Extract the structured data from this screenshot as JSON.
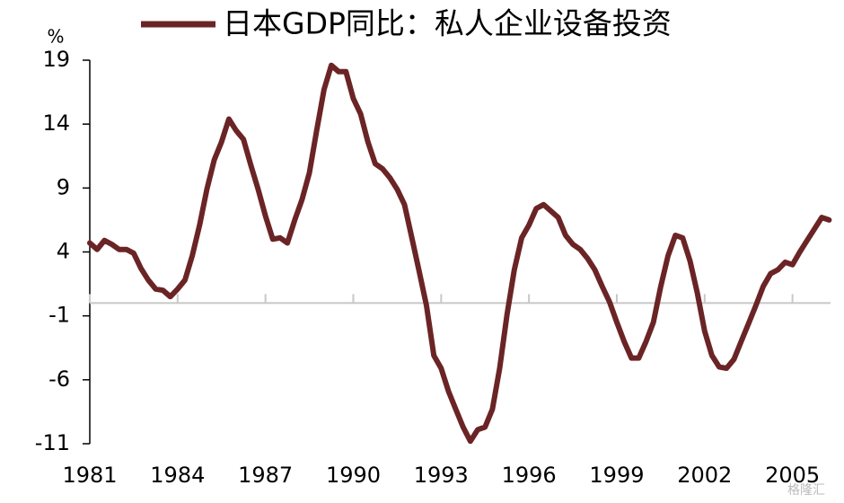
{
  "chart_data": {
    "type": "line",
    "y_label": "%",
    "watermark": "格隆汇",
    "x": [
      1981,
      1981.25,
      1981.5,
      1981.75,
      1982,
      1982.25,
      1982.5,
      1982.75,
      1983,
      1983.25,
      1983.5,
      1983.75,
      1984,
      1984.25,
      1984.5,
      1984.75,
      1985,
      1985.25,
      1985.5,
      1985.75,
      1986,
      1986.25,
      1986.5,
      1986.75,
      1987,
      1987.25,
      1987.5,
      1987.75,
      1988,
      1988.25,
      1988.5,
      1988.75,
      1989,
      1989.25,
      1989.5,
      1989.75,
      1990,
      1990.25,
      1990.5,
      1990.75,
      1991,
      1991.25,
      1991.5,
      1991.75,
      1992,
      1992.25,
      1992.5,
      1992.75,
      1993,
      1993.25,
      1993.5,
      1993.75,
      1994,
      1994.25,
      1994.5,
      1994.75,
      1995,
      1995.25,
      1995.5,
      1995.75,
      1996,
      1996.25,
      1996.5,
      1996.75,
      1997,
      1997.25,
      1997.5,
      1997.75,
      1998,
      1998.25,
      1998.5,
      1998.75,
      1999,
      1999.25,
      1999.5,
      1999.75,
      2000,
      2000.25,
      2000.5,
      2000.75,
      2001,
      2001.25,
      2001.5,
      2001.75,
      2002,
      2002.25,
      2002.5,
      2002.75,
      2003,
      2003.25,
      2003.5,
      2003.75,
      2004,
      2004.25,
      2004.5,
      2004.75,
      2005,
      2005.25,
      2005.5,
      2005.75,
      2006,
      2006.25
    ],
    "series": [
      {
        "name": "日本GDP同比：私人企业设备投资",
        "color": "#6b2425",
        "values": [
          4.7,
          4.2,
          4.9,
          4.6,
          4.2,
          4.2,
          3.9,
          2.7,
          1.8,
          1.1,
          1.0,
          0.5,
          1.1,
          1.8,
          3.7,
          6.1,
          8.9,
          11.2,
          12.6,
          14.4,
          13.5,
          12.8,
          10.8,
          8.9,
          6.8,
          5.0,
          5.1,
          4.7,
          6.5,
          8.1,
          10.2,
          13.5,
          16.7,
          18.6,
          18.1,
          18.1,
          16.0,
          14.8,
          12.6,
          10.9,
          10.5,
          9.8,
          8.9,
          7.7,
          5.1,
          2.5,
          -0.2,
          -4.1,
          -5.1,
          -6.9,
          -8.3,
          -9.7,
          -10.8,
          -9.9,
          -9.7,
          -8.3,
          -5.1,
          -0.9,
          2.6,
          5.1,
          6.1,
          7.4,
          7.7,
          7.2,
          6.7,
          5.3,
          4.6,
          4.2,
          3.5,
          2.6,
          1.3,
          0.1,
          -1.5,
          -3.0,
          -4.3,
          -4.3,
          -3.0,
          -1.5,
          1.3,
          3.7,
          5.3,
          5.1,
          3.3,
          0.8,
          -2.2,
          -4.1,
          -5.0,
          -5.1,
          -4.4,
          -3.0,
          -1.6,
          -0.2,
          1.3,
          2.3,
          2.6,
          3.2,
          3.0,
          4.0,
          4.9,
          5.8,
          6.7,
          6.5
        ]
      }
    ],
    "xlim": [
      1981,
      2006.3
    ],
    "xticks": [
      1981,
      1984,
      1987,
      1990,
      1993,
      1996,
      1999,
      2002,
      2005
    ],
    "ylim": [
      -11,
      19
    ],
    "yticks": [
      -11,
      -6,
      -1,
      4,
      9,
      14,
      19
    ],
    "zero_line": true
  }
}
